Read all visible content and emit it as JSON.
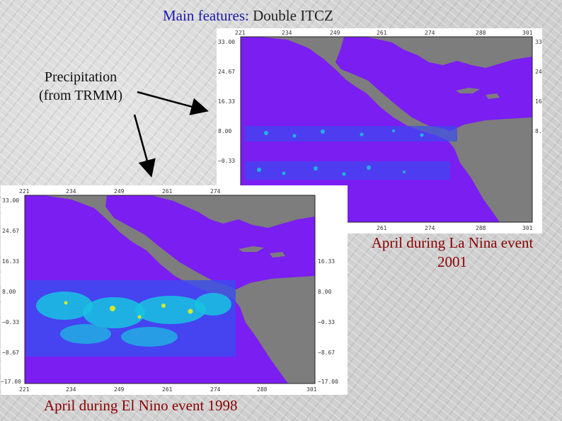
{
  "slide": {
    "title_label": "Main features:",
    "title_value": "Double ITCZ",
    "precip_label_line1": "Precipitation",
    "precip_label_line2": "(from TRMM)",
    "caption_lanina_line1": "April during La Nina event",
    "caption_lanina_line2": "2001",
    "caption_elnino": "April during El Nino event 1998"
  },
  "maps": {
    "x_ticks": [
      "221",
      "234",
      "249",
      "261",
      "274",
      "288",
      "301"
    ],
    "y_ticks": [
      "33.00",
      "24.67",
      "16.33",
      "8.00",
      "−0.33",
      "−8.67",
      "−17.00"
    ]
  },
  "colors": {
    "ocean": "#7a1ef2",
    "land": "#7d7d7d",
    "rain_low": "#3a4cf0",
    "rain_mid": "#19c3e0",
    "rain_high": "#cfe830",
    "caption": "#8a0000",
    "title_label": "#1a1aa8"
  }
}
